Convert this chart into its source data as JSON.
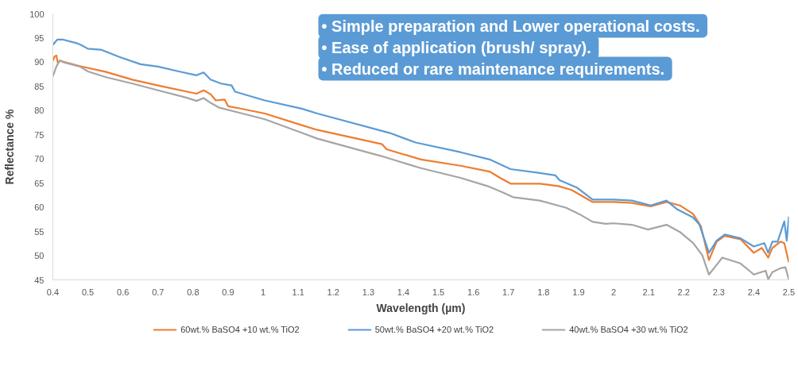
{
  "chart_data": {
    "type": "line",
    "xlabel": "Wavelength (µm)",
    "ylabel": "Reflectance %",
    "annotations": [
      "•  Simple preparation and Lower operational costs.",
      "•  Ease of application (brush/ spray).",
      "•  Reduced or rare maintenance requirements."
    ],
    "xlim": [
      0.4,
      2.5
    ],
    "xticks": [
      0.4,
      0.5,
      0.6,
      0.7,
      0.8,
      0.9,
      1,
      1.1,
      1.2,
      1.3,
      1.4,
      1.5,
      1.6,
      1.7,
      1.8,
      1.9,
      2,
      2.1,
      2.2,
      2.3,
      2.4,
      2.5
    ],
    "ylim": [
      45,
      100
    ],
    "yticks": [
      45,
      50,
      55,
      60,
      65,
      70,
      75,
      80,
      85,
      90,
      95,
      100
    ],
    "grid": false,
    "legend": "bottom",
    "marker": "none",
    "line_style": "solid",
    "series": [
      {
        "name": "60wt.% BaSO4 +10 wt.% TiO2",
        "color": "#ed7d31",
        "x": [
          0.4,
          0.405,
          0.41,
          0.414,
          0.42,
          0.477,
          0.552,
          0.627,
          0.7,
          0.81,
          0.83,
          0.85,
          0.865,
          0.89,
          0.9,
          0.93,
          1.005,
          1.11,
          1.155,
          1.337,
          1.34,
          1.352,
          1.45,
          1.563,
          1.646,
          1.676,
          1.706,
          1.79,
          1.842,
          1.88,
          1.94,
          2.0,
          2.052,
          2.106,
          2.151,
          2.189,
          2.227,
          2.249,
          2.272,
          2.294,
          2.317,
          2.362,
          2.4,
          2.423,
          2.441,
          2.453,
          2.476,
          2.487,
          2.5
        ],
        "values": [
          90.3,
          91.2,
          91.4,
          89.9,
          90.3,
          89.2,
          88.0,
          86.4,
          85.2,
          83.5,
          84.2,
          83.4,
          82.1,
          82.3,
          80.9,
          80.5,
          79.4,
          77.0,
          76.0,
          73.1,
          73.0,
          72.0,
          69.9,
          68.6,
          67.4,
          66.1,
          64.9,
          64.9,
          64.4,
          63.6,
          61.1,
          61.1,
          60.9,
          60.2,
          61.1,
          60.4,
          58.6,
          56.1,
          49.1,
          52.9,
          54.1,
          53.4,
          50.6,
          51.6,
          49.6,
          51.6,
          52.9,
          52.6,
          48.6
        ]
      },
      {
        "name": "50wt.% BaSO4 +20 wt.% TiO2",
        "color": "#5b9bd5",
        "x": [
          0.4,
          0.413,
          0.428,
          0.47,
          0.48,
          0.5,
          0.537,
          0.59,
          0.65,
          0.7,
          0.76,
          0.81,
          0.83,
          0.85,
          0.88,
          0.91,
          0.92,
          1.005,
          1.11,
          1.155,
          1.36,
          1.435,
          1.563,
          1.646,
          1.706,
          1.789,
          1.834,
          1.846,
          1.895,
          1.94,
          2.0,
          2.052,
          2.106,
          2.151,
          2.181,
          2.227,
          2.245,
          2.272,
          2.294,
          2.317,
          2.362,
          2.4,
          2.43,
          2.441,
          2.453,
          2.468,
          2.487,
          2.494,
          2.5
        ],
        "values": [
          93.6,
          94.7,
          94.7,
          93.9,
          93.6,
          92.8,
          92.6,
          91.1,
          89.6,
          89.1,
          88.1,
          87.3,
          87.9,
          86.4,
          85.6,
          85.2,
          83.9,
          82.1,
          80.4,
          79.4,
          75.4,
          73.4,
          71.4,
          69.9,
          67.9,
          67.1,
          66.6,
          65.6,
          64.1,
          61.6,
          61.6,
          61.4,
          60.4,
          61.4,
          59.6,
          57.9,
          56.4,
          50.6,
          53.1,
          54.4,
          53.6,
          51.9,
          52.6,
          50.6,
          52.9,
          52.9,
          57.1,
          53.1,
          58.1
        ]
      },
      {
        "name": "40wt.% BaSO4 +30 wt.% TiO2",
        "color": "#a5a5a5",
        "x": [
          0.4,
          0.41,
          0.42,
          0.43,
          0.477,
          0.5,
          0.552,
          0.627,
          0.7,
          0.78,
          0.81,
          0.83,
          0.85,
          0.875,
          0.93,
          1.005,
          1.11,
          1.155,
          1.337,
          1.45,
          1.563,
          1.64,
          1.683,
          1.713,
          1.789,
          1.865,
          1.902,
          1.94,
          1.977,
          2.0,
          2.052,
          2.098,
          2.151,
          2.189,
          2.227,
          2.253,
          2.272,
          2.294,
          2.31,
          2.362,
          2.392,
          2.4,
          2.434,
          2.441,
          2.453,
          2.476,
          2.49,
          2.5
        ],
        "values": [
          87.1,
          89.1,
          90.4,
          90.0,
          89.1,
          88.1,
          86.9,
          85.6,
          84.2,
          82.7,
          82.0,
          82.6,
          81.6,
          80.6,
          79.6,
          78.2,
          75.4,
          74.2,
          70.6,
          68.1,
          66.1,
          64.4,
          63.1,
          62.1,
          61.4,
          59.9,
          58.6,
          57.0,
          56.6,
          56.7,
          56.4,
          55.4,
          56.4,
          54.9,
          52.6,
          50.1,
          46.1,
          48.1,
          49.6,
          48.4,
          46.6,
          46.1,
          46.9,
          45.1,
          46.6,
          47.4,
          47.6,
          45.1
        ]
      }
    ]
  }
}
